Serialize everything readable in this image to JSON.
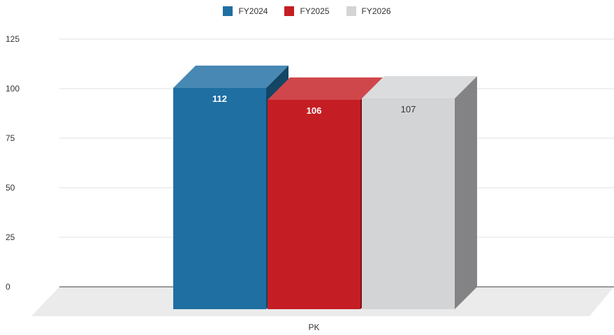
{
  "chart_data": {
    "type": "bar",
    "categories": [
      "PK"
    ],
    "series": [
      {
        "name": "FY2024",
        "values": [
          112
        ],
        "color": "#1f6fa3",
        "label_color": "#ffffff"
      },
      {
        "name": "FY2025",
        "values": [
          106
        ],
        "color": "#c41e24",
        "label_color": "#ffffff"
      },
      {
        "name": "FY2026",
        "values": [
          107
        ],
        "color": "#d3d4d6",
        "label_color": "#333333"
      }
    ],
    "yticks": [
      "0",
      "25",
      "50",
      "75",
      "100",
      "125"
    ],
    "ylim": [
      0,
      125
    ],
    "grid": true,
    "legend_position": "top-center",
    "three_d": true
  }
}
